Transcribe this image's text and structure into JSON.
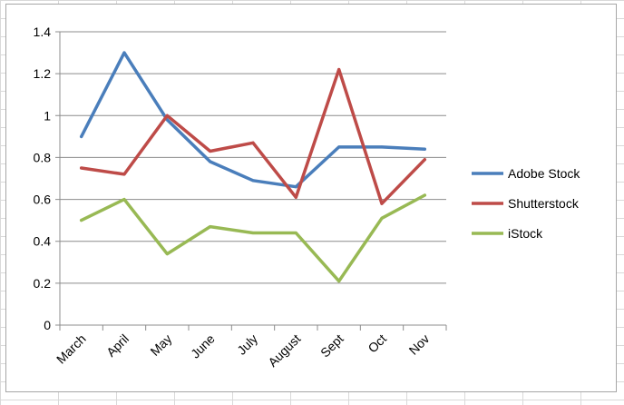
{
  "chart_data": {
    "type": "line",
    "title": "",
    "xlabel": "",
    "ylabel": "",
    "categories": [
      "March",
      "April",
      "May",
      "June",
      "July",
      "August",
      "Sept",
      "Oct",
      "Nov"
    ],
    "ylim": [
      0,
      1.4
    ],
    "yticks": [
      0,
      0.2,
      0.4,
      0.6,
      0.8,
      1,
      1.2,
      1.4
    ],
    "grid": true,
    "legend_position": "right",
    "series": [
      {
        "name": "Adobe Stock",
        "color": "#4a7ebb",
        "values": [
          0.9,
          1.3,
          0.98,
          0.78,
          0.69,
          0.66,
          0.85,
          0.85,
          0.84
        ]
      },
      {
        "name": "Shutterstock",
        "color": "#be4b48",
        "values": [
          0.75,
          0.72,
          1.0,
          0.83,
          0.87,
          0.61,
          1.22,
          0.58,
          0.79
        ]
      },
      {
        "name": "iStock",
        "color": "#98b954",
        "values": [
          0.5,
          0.6,
          0.34,
          0.47,
          0.44,
          0.44,
          0.21,
          0.51,
          0.62
        ]
      }
    ]
  }
}
